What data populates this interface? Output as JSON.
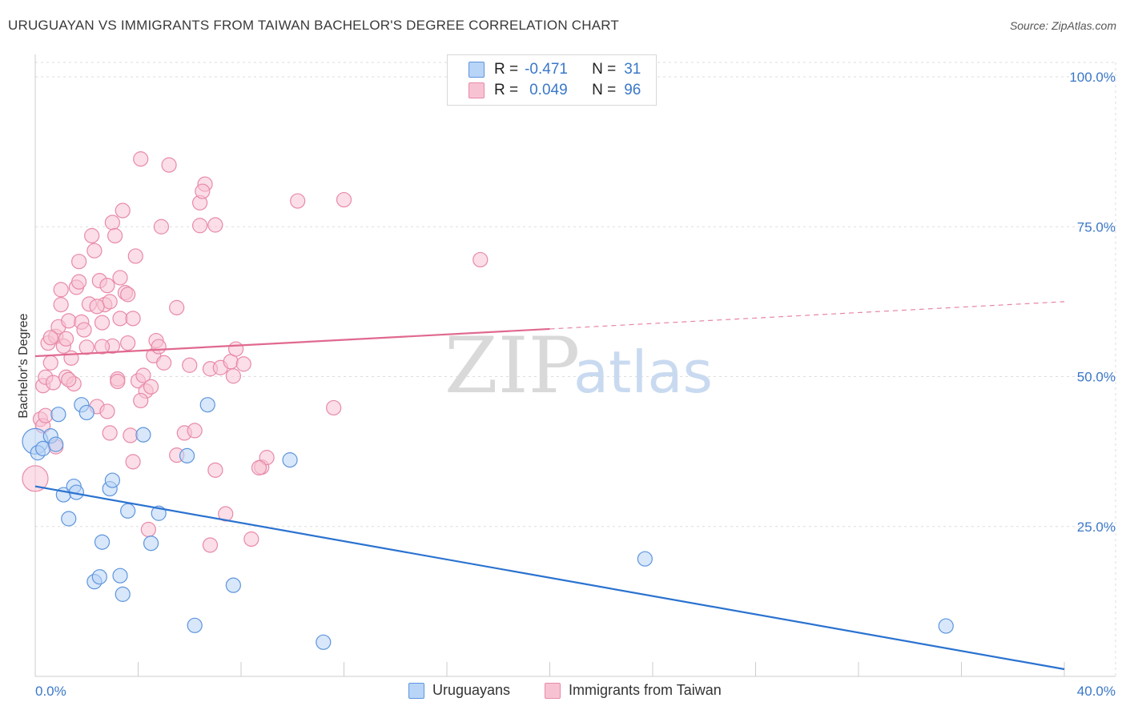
{
  "header": {
    "title": "URUGUAYAN VS IMMIGRANTS FROM TAIWAN BACHELOR'S DEGREE CORRELATION CHART",
    "source": "Source: ZipAtlas.com"
  },
  "watermark": {
    "zip": "ZIP",
    "atlas": "atlas"
  },
  "colors": {
    "blue_fill": "#b8d4f6",
    "blue_stroke": "#5d95dd",
    "blue_line": "#2a72d0",
    "pink_fill": "#f7c3d3",
    "pink_stroke": "#e88aa8",
    "pink_line": "#e0698f",
    "axis_text": "#3a78c8",
    "grid": "#dddddd"
  },
  "legend": {
    "items": [
      {
        "r_label": "R =",
        "r_value": "-0.471",
        "n_label": "N =",
        "n_value": "31"
      },
      {
        "r_label": "R =",
        "r_value": "0.049",
        "n_label": "N =",
        "n_value": "96"
      }
    ]
  },
  "chart_data": {
    "type": "scatter",
    "title": "URUGUAYAN VS IMMIGRANTS FROM TAIWAN BACHELOR'S DEGREE CORRELATION CHART",
    "xlabel": "",
    "ylabel": "Bachelor's Degree",
    "xlim": [
      0,
      40
    ],
    "ylim": [
      0,
      100
    ],
    "x_tick_labels": [
      "0.0%",
      "40.0%"
    ],
    "y_ticks": [
      25,
      50,
      75,
      100
    ],
    "y_tick_labels": [
      "25.0%",
      "50.0%",
      "75.0%",
      "100.0%"
    ],
    "grid": true,
    "series": [
      {
        "name": "Uruguayans",
        "r": -0.471,
        "n": 31,
        "trend": {
          "x0": 0,
          "y0": 31.7,
          "x1": 40,
          "y1": 1.2,
          "solid_until": 40
        },
        "points": [
          [
            0.0,
            39.2
          ],
          [
            0.1,
            37.3
          ],
          [
            0.3,
            38.0
          ],
          [
            0.6,
            40.1
          ],
          [
            0.8,
            38.7
          ],
          [
            0.9,
            43.7
          ],
          [
            1.1,
            30.3
          ],
          [
            1.3,
            26.3
          ],
          [
            1.5,
            31.7
          ],
          [
            1.6,
            30.7
          ],
          [
            1.8,
            45.3
          ],
          [
            2.0,
            44.0
          ],
          [
            2.3,
            15.8
          ],
          [
            2.5,
            16.6
          ],
          [
            2.6,
            22.4
          ],
          [
            2.9,
            31.3
          ],
          [
            3.0,
            32.7
          ],
          [
            3.3,
            16.8
          ],
          [
            3.4,
            13.7
          ],
          [
            3.6,
            27.6
          ],
          [
            4.2,
            40.3
          ],
          [
            4.5,
            22.2
          ],
          [
            4.8,
            27.2
          ],
          [
            5.9,
            36.8
          ],
          [
            6.2,
            8.5
          ],
          [
            6.7,
            45.3
          ],
          [
            7.7,
            15.2
          ],
          [
            9.9,
            36.1
          ],
          [
            11.2,
            5.7
          ],
          [
            23.7,
            19.6
          ],
          [
            35.4,
            8.4
          ]
        ]
      },
      {
        "name": "Immigrants from Taiwan",
        "r": 0.049,
        "n": 96,
        "trend": {
          "x0": 0,
          "y0": 53.4,
          "x1": 40,
          "y1": 62.5,
          "solid_until": 20
        },
        "points": [
          [
            0.0,
            33.0
          ],
          [
            0.2,
            42.9
          ],
          [
            0.3,
            48.5
          ],
          [
            0.4,
            49.9
          ],
          [
            0.5,
            55.6
          ],
          [
            0.6,
            52.3
          ],
          [
            0.7,
            49.0
          ],
          [
            0.8,
            56.7
          ],
          [
            0.9,
            58.3
          ],
          [
            1.0,
            64.5
          ],
          [
            1.1,
            55.1
          ],
          [
            1.2,
            49.9
          ],
          [
            1.3,
            59.3
          ],
          [
            1.4,
            53.1
          ],
          [
            1.5,
            48.8
          ],
          [
            1.6,
            64.9
          ],
          [
            1.7,
            65.8
          ],
          [
            1.8,
            59.1
          ],
          [
            1.9,
            57.8
          ],
          [
            2.0,
            54.9
          ],
          [
            2.1,
            62.1
          ],
          [
            2.2,
            73.5
          ],
          [
            2.3,
            71.0
          ],
          [
            2.4,
            45.0
          ],
          [
            2.5,
            66.0
          ],
          [
            2.6,
            59.0
          ],
          [
            2.7,
            62.0
          ],
          [
            2.8,
            65.2
          ],
          [
            2.9,
            62.5
          ],
          [
            3.0,
            75.7
          ],
          [
            3.1,
            73.5
          ],
          [
            3.2,
            49.6
          ],
          [
            3.3,
            59.7
          ],
          [
            3.4,
            77.7
          ],
          [
            3.5,
            64.0
          ],
          [
            3.6,
            55.6
          ],
          [
            3.7,
            40.2
          ],
          [
            3.8,
            35.8
          ],
          [
            3.9,
            70.1
          ],
          [
            4.0,
            49.3
          ],
          [
            4.1,
            86.3
          ],
          [
            4.2,
            50.2
          ],
          [
            4.3,
            47.6
          ],
          [
            4.4,
            24.5
          ],
          [
            4.5,
            48.3
          ],
          [
            4.6,
            53.5
          ],
          [
            4.7,
            56.0
          ],
          [
            4.8,
            55.0
          ],
          [
            4.9,
            75.0
          ],
          [
            5.2,
            85.3
          ],
          [
            5.5,
            61.5
          ],
          [
            5.8,
            40.6
          ],
          [
            6.0,
            51.9
          ],
          [
            6.2,
            41.0
          ],
          [
            6.4,
            75.2
          ],
          [
            6.6,
            82.1
          ],
          [
            6.8,
            51.3
          ],
          [
            7.0,
            75.3
          ],
          [
            7.2,
            51.5
          ],
          [
            7.4,
            27.1
          ],
          [
            7.6,
            52.5
          ],
          [
            7.8,
            54.6
          ],
          [
            8.1,
            52.1
          ],
          [
            8.4,
            22.9
          ],
          [
            8.8,
            34.9
          ],
          [
            9.0,
            36.5
          ],
          [
            10.2,
            79.3
          ],
          [
            11.6,
            44.8
          ],
          [
            12.0,
            79.5
          ],
          [
            17.3,
            69.5
          ],
          [
            5.5,
            36.9
          ],
          [
            6.8,
            21.9
          ],
          [
            3.3,
            66.5
          ],
          [
            2.9,
            40.6
          ],
          [
            0.8,
            38.3
          ],
          [
            1.7,
            69.2
          ],
          [
            2.8,
            44.2
          ],
          [
            3.0,
            55.1
          ],
          [
            1.3,
            49.5
          ],
          [
            0.3,
            41.8
          ],
          [
            0.4,
            43.5
          ],
          [
            6.4,
            79.0
          ],
          [
            7.0,
            34.4
          ],
          [
            3.8,
            59.7
          ],
          [
            2.4,
            61.7
          ],
          [
            5.0,
            52.3
          ],
          [
            8.7,
            34.8
          ],
          [
            1.2,
            56.3
          ],
          [
            4.1,
            46.0
          ],
          [
            6.5,
            80.9
          ],
          [
            1.0,
            62.0
          ],
          [
            2.6,
            55.0
          ],
          [
            0.6,
            56.5
          ],
          [
            3.6,
            63.7
          ],
          [
            7.7,
            50.1
          ],
          [
            3.2,
            49.2
          ]
        ]
      }
    ]
  },
  "bottom_legend": {
    "series1": "Uruguayans",
    "series2": "Immigrants from Taiwan"
  }
}
